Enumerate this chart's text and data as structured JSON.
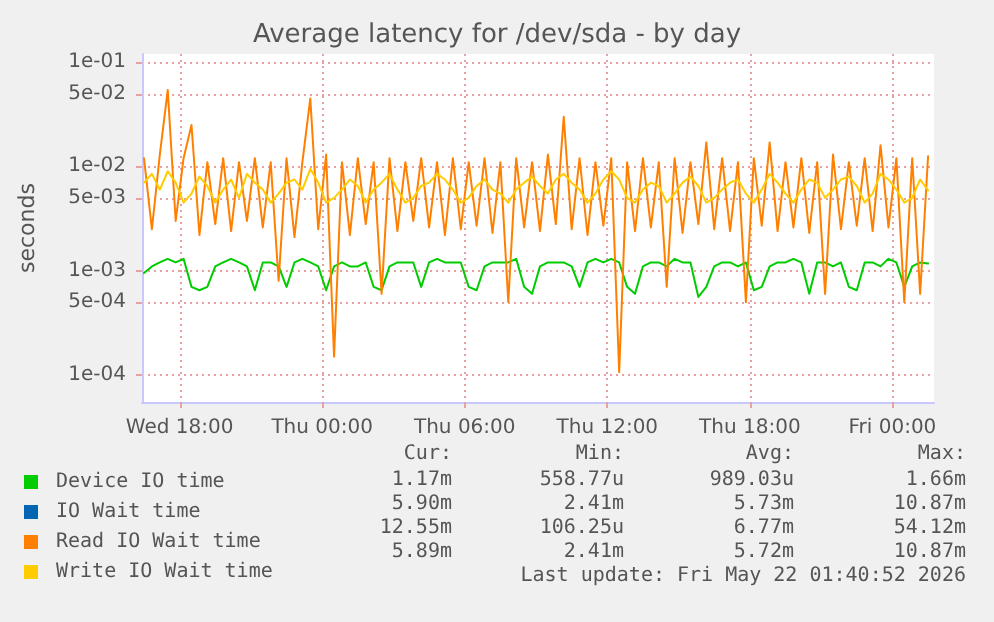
{
  "chart_data": {
    "type": "line",
    "title": "Average latency for /dev/sda - by day",
    "ylabel": "seconds",
    "log": "y",
    "grid": true,
    "legend": "bottom left",
    "marker": "none",
    "line_style": "solid",
    "xlim": [
      "2026-05-20T16:25",
      "2026-05-22T01:45"
    ],
    "xticks": [
      {
        "value": "2026-05-20T18:00",
        "label": "Wed 18:00"
      },
      {
        "value": "2026-05-21T00:00",
        "label": "Thu 00:00"
      },
      {
        "value": "2026-05-21T06:00",
        "label": "Thu 06:00"
      },
      {
        "value": "2026-05-21T12:00",
        "label": "Thu 12:00"
      },
      {
        "value": "2026-05-21T18:00",
        "label": "Thu 18:00"
      },
      {
        "value": "2026-05-22T00:00",
        "label": "Fri 00:00"
      }
    ],
    "ylim": [
      5.5e-05,
      0.12
    ],
    "yticks": [
      {
        "value": 0.0001,
        "label": "1e-04"
      },
      {
        "value": 0.0005,
        "label": "5e-04"
      },
      {
        "value": 0.001,
        "label": "1e-03"
      },
      {
        "value": 0.005,
        "label": "5e-03"
      },
      {
        "value": 0.01,
        "label": "1e-02"
      },
      {
        "value": 0.05,
        "label": "5e-02"
      },
      {
        "value": 0.1,
        "label": "1e-01"
      }
    ],
    "x": [
      "2026-05-20T16:30",
      "2026-05-20T16:50",
      "2026-05-20T17:10",
      "2026-05-20T17:30",
      "2026-05-20T17:50",
      "2026-05-20T18:10",
      "2026-05-20T18:30",
      "2026-05-20T18:50",
      "2026-05-20T19:10",
      "2026-05-20T19:30",
      "2026-05-20T19:50",
      "2026-05-20T20:10",
      "2026-05-20T20:30",
      "2026-05-20T20:50",
      "2026-05-20T21:10",
      "2026-05-20T21:30",
      "2026-05-20T21:50",
      "2026-05-20T22:10",
      "2026-05-20T22:30",
      "2026-05-20T22:50",
      "2026-05-20T23:10",
      "2026-05-20T23:30",
      "2026-05-20T23:50",
      "2026-05-21T00:10",
      "2026-05-21T00:30",
      "2026-05-21T00:50",
      "2026-05-21T01:10",
      "2026-05-21T01:30",
      "2026-05-21T01:50",
      "2026-05-21T02:10",
      "2026-05-21T02:30",
      "2026-05-21T02:50",
      "2026-05-21T03:10",
      "2026-05-21T03:30",
      "2026-05-21T03:50",
      "2026-05-21T04:10",
      "2026-05-21T04:30",
      "2026-05-21T04:50",
      "2026-05-21T05:10",
      "2026-05-21T05:30",
      "2026-05-21T05:50",
      "2026-05-21T06:10",
      "2026-05-21T06:30",
      "2026-05-21T06:50",
      "2026-05-21T07:10",
      "2026-05-21T07:30",
      "2026-05-21T07:50",
      "2026-05-21T08:10",
      "2026-05-21T08:30",
      "2026-05-21T08:50",
      "2026-05-21T09:10",
      "2026-05-21T09:30",
      "2026-05-21T09:50",
      "2026-05-21T10:10",
      "2026-05-21T10:30",
      "2026-05-21T10:50",
      "2026-05-21T11:10",
      "2026-05-21T11:30",
      "2026-05-21T11:50",
      "2026-05-21T12:10",
      "2026-05-21T12:30",
      "2026-05-21T12:50",
      "2026-05-21T13:10",
      "2026-05-21T13:30",
      "2026-05-21T13:50",
      "2026-05-21T14:10",
      "2026-05-21T14:30",
      "2026-05-21T14:50",
      "2026-05-21T15:10",
      "2026-05-21T15:30",
      "2026-05-21T15:50",
      "2026-05-21T16:10",
      "2026-05-21T16:30",
      "2026-05-21T16:50",
      "2026-05-21T17:10",
      "2026-05-21T17:30",
      "2026-05-21T17:50",
      "2026-05-21T18:10",
      "2026-05-21T18:30",
      "2026-05-21T18:50",
      "2026-05-21T19:10",
      "2026-05-21T19:30",
      "2026-05-21T19:50",
      "2026-05-21T20:10",
      "2026-05-21T20:30",
      "2026-05-21T20:50",
      "2026-05-21T21:10",
      "2026-05-21T21:30",
      "2026-05-21T21:50",
      "2026-05-21T22:10",
      "2026-05-21T22:30",
      "2026-05-21T22:50",
      "2026-05-21T23:10",
      "2026-05-21T23:30",
      "2026-05-21T23:50",
      "2026-05-22T00:10",
      "2026-05-22T00:30",
      "2026-05-22T00:50",
      "2026-05-22T01:10",
      "2026-05-22T01:30"
    ],
    "series": [
      {
        "name": "Device IO time",
        "color": "#00cc00",
        "values": [
          0.00095,
          0.0011,
          0.0012,
          0.0013,
          0.0012,
          0.0013,
          0.0007,
          0.00065,
          0.0007,
          0.0011,
          0.0012,
          0.0013,
          0.0012,
          0.0011,
          0.00065,
          0.0012,
          0.0012,
          0.0011,
          0.0007,
          0.0012,
          0.0013,
          0.0012,
          0.0011,
          0.00065,
          0.0011,
          0.0012,
          0.0011,
          0.0011,
          0.0012,
          0.0007,
          0.00065,
          0.0011,
          0.0012,
          0.0012,
          0.0012,
          0.0007,
          0.0012,
          0.0013,
          0.0012,
          0.0012,
          0.0012,
          0.0007,
          0.00065,
          0.0011,
          0.0012,
          0.0012,
          0.0012,
          0.0013,
          0.0007,
          0.0006,
          0.0011,
          0.0012,
          0.0012,
          0.0012,
          0.0011,
          0.0007,
          0.0012,
          0.0013,
          0.0012,
          0.0013,
          0.0012,
          0.0007,
          0.0006,
          0.0011,
          0.0012,
          0.0012,
          0.0011,
          0.0013,
          0.0012,
          0.0012,
          0.00056,
          0.0007,
          0.0011,
          0.0012,
          0.0012,
          0.0011,
          0.0012,
          0.00065,
          0.0007,
          0.0011,
          0.0012,
          0.0012,
          0.0013,
          0.0012,
          0.0006,
          0.0012,
          0.0012,
          0.0011,
          0.0012,
          0.0007,
          0.00065,
          0.0012,
          0.0012,
          0.0011,
          0.0013,
          0.0012,
          0.0007,
          0.0011,
          0.0012,
          0.00117
        ]
      },
      {
        "name": "IO Wait time",
        "color": "#0066b3",
        "values": [
          null,
          null,
          null,
          null,
          null,
          null,
          null,
          null,
          null,
          null,
          null,
          null,
          null,
          null,
          null,
          null,
          null,
          null,
          null,
          null,
          null,
          null,
          null,
          null,
          null,
          null,
          null,
          null,
          null,
          null,
          null,
          null,
          null,
          null,
          null,
          null,
          null,
          null,
          null,
          null,
          null,
          null,
          null,
          null,
          null,
          null,
          null,
          null,
          null,
          null,
          null,
          null,
          null,
          null,
          null,
          null,
          null,
          null,
          null,
          null,
          null,
          null,
          null,
          null,
          null,
          null,
          null,
          null,
          null,
          null,
          null,
          null,
          null,
          null,
          null,
          null,
          null,
          null,
          null,
          null,
          null,
          null,
          null,
          null,
          null,
          null,
          null,
          null,
          null,
          null,
          null,
          null,
          null,
          null,
          null,
          null,
          null,
          null,
          null,
          null
        ]
      },
      {
        "name": "Read IO Wait time",
        "color": "#ff8000",
        "values": [
          0.012,
          0.0025,
          0.013,
          0.0541,
          0.003,
          0.012,
          0.025,
          0.0022,
          0.011,
          0.0028,
          0.012,
          0.0024,
          0.011,
          0.003,
          0.012,
          0.0026,
          0.011,
          0.0008,
          0.012,
          0.0021,
          0.011,
          0.045,
          0.0025,
          0.013,
          0.00015,
          0.011,
          0.0022,
          0.012,
          0.0028,
          0.011,
          0.0006,
          0.012,
          0.0024,
          0.011,
          0.003,
          0.012,
          0.0026,
          0.011,
          0.0022,
          0.012,
          0.0025,
          0.011,
          0.0027,
          0.012,
          0.0023,
          0.011,
          0.0005,
          0.012,
          0.0026,
          0.011,
          0.0024,
          0.013,
          0.0028,
          0.03,
          0.0025,
          0.012,
          0.0022,
          0.011,
          0.0027,
          0.012,
          0.000106,
          0.011,
          0.0024,
          0.012,
          0.0026,
          0.011,
          0.0007,
          0.012,
          0.0023,
          0.011,
          0.0028,
          0.017,
          0.0025,
          0.012,
          0.0024,
          0.011,
          0.0005,
          0.012,
          0.0027,
          0.017,
          0.0024,
          0.011,
          0.0026,
          0.012,
          0.0023,
          0.011,
          0.0006,
          0.013,
          0.0025,
          0.011,
          0.0027,
          0.012,
          0.0024,
          0.016,
          0.0026,
          0.012,
          0.0005,
          0.012,
          0.0006,
          0.01255
        ]
      },
      {
        "name": "Write IO Wait time",
        "color": "#ffcc00",
        "values": [
          0.007,
          0.0085,
          0.006,
          0.009,
          0.007,
          0.0045,
          0.0055,
          0.008,
          0.0065,
          0.0045,
          0.006,
          0.0075,
          0.005,
          0.0085,
          0.007,
          0.006,
          0.0045,
          0.0055,
          0.007,
          0.0075,
          0.006,
          0.0095,
          0.007,
          0.0045,
          0.005,
          0.006,
          0.0075,
          0.0065,
          0.0045,
          0.006,
          0.007,
          0.0085,
          0.006,
          0.0045,
          0.005,
          0.0065,
          0.007,
          0.0085,
          0.0075,
          0.006,
          0.0045,
          0.005,
          0.0065,
          0.0075,
          0.006,
          0.0055,
          0.0045,
          0.006,
          0.007,
          0.008,
          0.0065,
          0.0055,
          0.0075,
          0.0085,
          0.007,
          0.006,
          0.0045,
          0.0055,
          0.0075,
          0.009,
          0.0075,
          0.005,
          0.0045,
          0.006,
          0.007,
          0.0065,
          0.0045,
          0.0055,
          0.007,
          0.008,
          0.0065,
          0.0045,
          0.005,
          0.006,
          0.007,
          0.0075,
          0.0055,
          0.0045,
          0.006,
          0.0085,
          0.007,
          0.0055,
          0.0045,
          0.006,
          0.0075,
          0.007,
          0.005,
          0.006,
          0.0075,
          0.008,
          0.0065,
          0.0045,
          0.0055,
          0.0085,
          0.0075,
          0.006,
          0.0045,
          0.005,
          0.0075,
          0.00589
        ]
      }
    ],
    "annotations": [
      "Cur:",
      "Min:",
      "Avg:",
      "Max:",
      "1.17m",
      "558.77u",
      "989.03u",
      "1.66m",
      "5.90m",
      "2.41m",
      "5.73m",
      "10.87m",
      "12.55m",
      "106.25u",
      "6.77m",
      "54.12m",
      "5.89m",
      "2.41m",
      "5.72m",
      "10.87m",
      "Last update: Fri May 22 01:40:52 2026"
    ]
  }
}
